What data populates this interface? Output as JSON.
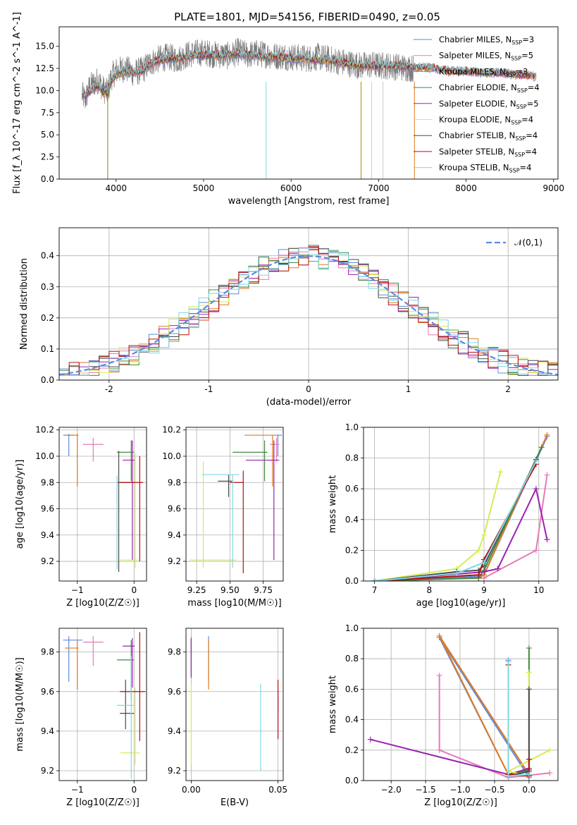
{
  "figure": {
    "title": "PLATE=1801, MJD=54156, FIBERID=0490, z=0.05"
  },
  "series_styles": [
    {
      "name": "Chabrier MILES",
      "nssp": "3",
      "color": "#5e8ae0"
    },
    {
      "name": "Salpeter MILES",
      "nssp": "5",
      "color": "#e77ab5"
    },
    {
      "name": "Kroupa MILES",
      "nssp": "3",
      "color": "#e07a22"
    },
    {
      "name": "Chabrier ELODIE",
      "nssp": "4",
      "color": "#3f8a3f"
    },
    {
      "name": "Salpeter ELODIE",
      "nssp": "5",
      "color": "#9b22b0"
    },
    {
      "name": "Kroupa ELODIE",
      "nssp": "4",
      "color": "#d4ec53"
    },
    {
      "name": "Chabrier STELIB",
      "nssp": "4",
      "color": "#4a4a4a"
    },
    {
      "name": "Salpeter STELIB",
      "nssp": "4",
      "color": "#b51010"
    },
    {
      "name": "Kroupa STELIB",
      "nssp": "4",
      "color": "#7fd8e6"
    }
  ],
  "chart_data": [
    {
      "id": "spectrum",
      "type": "line",
      "title": "PLATE=1801, MJD=54156, FIBERID=0490, z=0.05",
      "xlabel": "wavelength [Angstrom, rest frame]",
      "ylabel": "Flux [f_λ 10^-17 erg cm^-2 s^-1 A^-1]",
      "xlim": [
        3350,
        9050
      ],
      "ylim": [
        0,
        17.2
      ],
      "xticks": [
        4000,
        5000,
        6000,
        7000,
        8000,
        9000
      ],
      "yticks": [
        0.0,
        2.5,
        5.0,
        7.5,
        10.0,
        12.5,
        15.0
      ],
      "grid": false,
      "legend": "upper-right",
      "data_x": [
        3610,
        3650,
        3700,
        3750,
        3800,
        3850,
        3900,
        3950,
        4000,
        4100,
        4200,
        4300,
        4400,
        4500,
        4600,
        4700,
        4800,
        4900,
        5000,
        5100,
        5200,
        5300,
        5400,
        5500,
        5600,
        5700,
        5800,
        5900,
        6000,
        6100,
        6200,
        6300,
        6400,
        6500,
        6600,
        6700,
        6800,
        6900,
        7000,
        7100,
        7200,
        7300,
        7400
      ],
      "data_y": [
        9.5,
        9.0,
        10.5,
        10.8,
        11.2,
        10.2,
        9.8,
        11.6,
        12.2,
        12.5,
        12.0,
        12.3,
        13.2,
        13.6,
        13.8,
        13.5,
        14.0,
        14.2,
        14.3,
        14.1,
        14.0,
        13.9,
        14.4,
        14.0,
        14.2,
        14.1,
        13.9,
        13.9,
        13.8,
        13.7,
        13.6,
        13.8,
        13.6,
        13.4,
        13.2,
        13.0,
        12.8,
        12.9,
        12.8,
        12.8,
        12.7,
        12.6,
        12.5
      ],
      "model_x": [
        3610,
        3650,
        3700,
        3750,
        3800,
        3850,
        3900,
        3950,
        4000,
        4100,
        4200,
        4300,
        4400,
        4500,
        4600,
        4700,
        4800,
        4900,
        5000,
        5200,
        5400,
        5600,
        5800,
        6000,
        6200,
        6400,
        6600,
        6800,
        7000,
        7200,
        7400,
        7600,
        7800,
        8000,
        8200,
        8400,
        8600,
        8800
      ],
      "model_y": [
        9.6,
        9.4,
        10.0,
        10.3,
        10.6,
        9.8,
        9.6,
        11.2,
        11.8,
        12.2,
        12.1,
        12.2,
        13.0,
        13.4,
        13.6,
        13.6,
        13.8,
        14.0,
        14.0,
        14.0,
        14.1,
        13.9,
        13.8,
        13.6,
        13.6,
        13.4,
        13.1,
        12.8,
        12.8,
        12.8,
        12.6,
        12.6,
        12.2,
        12.2,
        12.0,
        12.0,
        11.8,
        11.6
      ]
    },
    {
      "id": "residuals",
      "type": "bar",
      "xlabel": "(data-model)/error",
      "ylabel": "Normed distribution",
      "xlim": [
        -2.5,
        2.5
      ],
      "ylim": [
        0,
        0.49
      ],
      "xticks": [
        -2,
        -1,
        0,
        1,
        2
      ],
      "yticks": [
        0.0,
        0.1,
        0.2,
        0.3,
        0.4
      ],
      "grid": true,
      "legend": "upper-right",
      "gauss_label": "𝒩(0,1)",
      "gauss_color": "#5e8ae0",
      "bins": [
        -2.45,
        -2.35,
        -2.25,
        -2.15,
        -2.05,
        -1.95,
        -1.85,
        -1.75,
        -1.65,
        -1.55,
        -1.45,
        -1.35,
        -1.25,
        -1.15,
        -1.05,
        -0.95,
        -0.85,
        -0.75,
        -0.65,
        -0.55,
        -0.45,
        -0.35,
        -0.25,
        -0.15,
        -0.05,
        0.05,
        0.15,
        0.25,
        0.35,
        0.45,
        0.55,
        0.65,
        0.75,
        0.85,
        0.95,
        1.05,
        1.15,
        1.25,
        1.35,
        1.45,
        1.55,
        1.65,
        1.75,
        1.85,
        1.95,
        2.05,
        2.15,
        2.25,
        2.35,
        2.45
      ]
    },
    {
      "id": "age-vs-z",
      "type": "scatter",
      "xlabel": "Z [log10(Z/Z☉)]",
      "ylabel": "age [log10(age/yr)]",
      "xlim": [
        -1.32,
        0.22
      ],
      "ylim": [
        9.05,
        10.22
      ],
      "xticks": [
        -1,
        0
      ],
      "xticklabels": [
        "−1",
        "0"
      ],
      "yticks": [
        9.2,
        9.4,
        9.6,
        9.8,
        10.0,
        10.2
      ],
      "grid": true,
      "points": [
        {
          "x": -1.15,
          "y": 10.16,
          "xerr": [
            0.1,
            0.1
          ],
          "yerr": [
            0.16,
            0.01
          ]
        },
        {
          "x": -0.72,
          "y": 10.09,
          "xerr": [
            0.18,
            0.18
          ],
          "yerr": [
            0.13,
            0.05
          ]
        },
        {
          "x": -1.0,
          "y": 10.16,
          "xerr": [
            0.22,
            0.02
          ],
          "yerr": [
            0.39,
            0.01
          ]
        },
        {
          "x": -0.05,
          "y": 10.03,
          "xerr": [
            0.25,
            0.05
          ],
          "yerr": [
            0.22,
            0.09
          ]
        },
        {
          "x": -0.03,
          "y": 9.97,
          "xerr": [
            0.17,
            0.04
          ],
          "yerr": [
            0.76,
            0.15
          ]
        },
        {
          "x": 0.02,
          "y": 9.21,
          "xerr": [
            0.26,
            0.04
          ],
          "yerr": [
            0.06,
            0.81
          ]
        },
        {
          "x": -0.27,
          "y": 9.8,
          "xerr": [
            0.02,
            0.27
          ],
          "yerr": [
            0.68,
            0.24
          ]
        },
        {
          "x": 0.1,
          "y": 9.8,
          "xerr": [
            0.35,
            0.06
          ],
          "yerr": [
            0.6,
            0.2
          ]
        },
        {
          "x": -0.3,
          "y": 9.85,
          "xerr": [
            0.0,
            0.05
          ],
          "yerr": [
            0.71,
            0.0
          ]
        }
      ]
    },
    {
      "id": "age-vs-mass",
      "type": "scatter",
      "xlabel": "mass [log10(M/M☉)]",
      "ylabel": "",
      "xlim": [
        9.17,
        9.9
      ],
      "ylim": [
        9.05,
        10.22
      ],
      "xticks": [
        9.25,
        9.5,
        9.75
      ],
      "xticklabels": [
        "9.25",
        "9.50",
        "9.75"
      ],
      "yticks": [
        9.2,
        9.4,
        9.6,
        9.8,
        10.0,
        10.2
      ],
      "grid": true,
      "points": [
        {
          "x": 9.86,
          "y": 10.16,
          "xerr": [
            0.02,
            0.03
          ],
          "yerr": [
            0.16,
            0.0
          ]
        },
        {
          "x": 9.85,
          "y": 10.09,
          "xerr": [
            0.05,
            0.02
          ],
          "yerr": [
            0.13,
            0.05
          ]
        },
        {
          "x": 9.82,
          "y": 10.16,
          "xerr": [
            0.21,
            0.02
          ],
          "yerr": [
            0.39,
            0.0
          ]
        },
        {
          "x": 9.76,
          "y": 10.03,
          "xerr": [
            0.24,
            0.02
          ],
          "yerr": [
            0.22,
            0.09
          ]
        },
        {
          "x": 9.83,
          "y": 9.97,
          "xerr": [
            0.21,
            0.04
          ],
          "yerr": [
            0.76,
            0.15
          ]
        },
        {
          "x": 9.3,
          "y": 9.21,
          "xerr": [
            0.1,
            0.25
          ],
          "yerr": [
            0.06,
            0.75
          ]
        },
        {
          "x": 9.49,
          "y": 9.81,
          "xerr": [
            0.08,
            0.03
          ],
          "yerr": [
            0.12,
            0.05
          ]
        },
        {
          "x": 9.6,
          "y": 9.8,
          "xerr": [
            0.1,
            0.0
          ],
          "yerr": [
            0.69,
            0.09
          ]
        },
        {
          "x": 9.52,
          "y": 9.86,
          "xerr": [
            0.23,
            0.05
          ],
          "yerr": [
            0.71,
            0.0
          ]
        }
      ]
    },
    {
      "id": "weight-vs-age",
      "type": "line",
      "xlabel": "age [log10(age/yr)]",
      "ylabel": "mass weight",
      "xlim": [
        6.8,
        10.35
      ],
      "ylim": [
        0,
        1.0
      ],
      "xticks": [
        7,
        8,
        9,
        10
      ],
      "yticks": [
        0.0,
        0.2,
        0.4,
        0.6,
        0.8,
        1.0
      ],
      "grid": true,
      "series": [
        {
          "x": [
            7.0,
            8.9,
            9.0,
            10.15
          ],
          "y": [
            0.0,
            0.03,
            0.04,
            0.94
          ]
        },
        {
          "x": [
            7.0,
            9.0,
            9.95,
            10.15
          ],
          "y": [
            0.0,
            0.02,
            0.2,
            0.69
          ]
        },
        {
          "x": [
            7.0,
            8.9,
            9.0,
            10.15
          ],
          "y": [
            0.0,
            0.02,
            0.04,
            0.95
          ]
        },
        {
          "x": [
            7.0,
            8.9,
            9.0,
            10.05
          ],
          "y": [
            0.0,
            0.02,
            0.07,
            0.87
          ]
        },
        {
          "x": [
            7.0,
            9.0,
            9.25,
            9.95,
            10.15
          ],
          "y": [
            0.0,
            0.06,
            0.08,
            0.6,
            0.27
          ]
        },
        {
          "x": [
            7.0,
            8.5,
            8.9,
            9.0,
            9.3
          ],
          "y": [
            0.0,
            0.08,
            0.2,
            0.3,
            0.71
          ]
        },
        {
          "x": [
            7.0,
            8.5,
            8.9,
            9.0,
            9.95
          ],
          "y": [
            0.0,
            0.06,
            0.07,
            0.1,
            0.79
          ]
        },
        {
          "x": [
            7.0,
            8.9,
            9.0,
            9.95
          ],
          "y": [
            0.0,
            0.04,
            0.14,
            0.76
          ]
        },
        {
          "x": [
            7.0,
            8.5,
            9.0,
            9.95
          ],
          "y": [
            0.0,
            0.05,
            0.12,
            0.78
          ]
        }
      ]
    },
    {
      "id": "mass-vs-z",
      "type": "scatter",
      "xlabel": "Z [log10(Z/Z☉)]",
      "ylabel": "mass [log10(M/M☉)]",
      "xlim": [
        -1.32,
        0.22
      ],
      "ylim": [
        9.15,
        9.92
      ],
      "xticks": [
        -1,
        0
      ],
      "xticklabels": [
        "−1",
        "0"
      ],
      "yticks": [
        9.2,
        9.4,
        9.6,
        9.8
      ],
      "grid": true,
      "points": [
        {
          "x": -1.15,
          "y": 9.86,
          "xerr": [
            0.1,
            0.24
          ],
          "yerr": [
            0.21,
            0.02
          ]
        },
        {
          "x": -0.72,
          "y": 9.85,
          "xerr": [
            0.18,
            0.18
          ],
          "yerr": [
            0.12,
            0.03
          ]
        },
        {
          "x": -1.0,
          "y": 9.82,
          "xerr": [
            0.22,
            0.02
          ],
          "yerr": [
            0.21,
            0.04
          ]
        },
        {
          "x": -0.05,
          "y": 9.76,
          "xerr": [
            0.25,
            0.05
          ],
          "yerr": [
            0.2,
            0.1
          ]
        },
        {
          "x": -0.03,
          "y": 9.83,
          "xerr": [
            0.17,
            0.04
          ],
          "yerr": [
            0.21,
            0.04
          ]
        },
        {
          "x": 0.02,
          "y": 9.29,
          "xerr": [
            0.26,
            0.08
          ],
          "yerr": [
            0.06,
            0.33
          ]
        },
        {
          "x": -0.15,
          "y": 9.49,
          "xerr": [
            0.1,
            0.15
          ],
          "yerr": [
            0.08,
            0.17
          ]
        },
        {
          "x": 0.1,
          "y": 9.6,
          "xerr": [
            0.35,
            0.1
          ],
          "yerr": [
            0.25,
            0.3
          ]
        },
        {
          "x": -0.05,
          "y": 9.53,
          "xerr": [
            0.25,
            0.05
          ],
          "yerr": [
            0.37,
            0.25
          ]
        }
      ]
    },
    {
      "id": "mass-vs-ebv",
      "type": "scatter",
      "xlabel": "E(B-V)",
      "ylabel": "",
      "xlim": [
        -0.003,
        0.053
      ],
      "ylim": [
        9.15,
        9.92
      ],
      "xticks": [
        0.0,
        0.05
      ],
      "xticklabels": [
        "0.00",
        "0.05"
      ],
      "yticks": [
        9.2,
        9.4,
        9.6,
        9.8
      ],
      "grid": true,
      "points": [
        {
          "x": 0.01,
          "y": 9.86,
          "xerr": [
            0,
            0
          ],
          "yerr": [
            0.21,
            0.02
          ]
        },
        {
          "x": 0.0,
          "y": 9.85,
          "xerr": [
            0,
            0
          ],
          "yerr": [
            0.1,
            0.03
          ]
        },
        {
          "x": 0.01,
          "y": 9.82,
          "xerr": [
            0,
            0
          ],
          "yerr": [
            0.21,
            0.04
          ]
        },
        {
          "x": 0.0,
          "y": 9.76,
          "xerr": [
            0,
            0
          ],
          "yerr": [
            0.08,
            0.1
          ]
        },
        {
          "x": 0.0,
          "y": 9.83,
          "xerr": [
            0,
            0
          ],
          "yerr": [
            0.16,
            0.04
          ]
        },
        {
          "x": 0.0,
          "y": 9.43,
          "xerr": [
            0,
            0
          ],
          "yerr": [
            0.2,
            0.2
          ]
        },
        {
          "x": 0.05,
          "y": 9.5,
          "xerr": [
            0,
            0
          ],
          "yerr": [
            0.0,
            0.1
          ]
        },
        {
          "x": 0.05,
          "y": 9.51,
          "xerr": [
            0,
            0
          ],
          "yerr": [
            0.15,
            0.15
          ]
        },
        {
          "x": 0.04,
          "y": 9.42,
          "xerr": [
            0,
            0
          ],
          "yerr": [
            0.22,
            0.22
          ]
        }
      ]
    },
    {
      "id": "weight-vs-z",
      "type": "line",
      "xlabel": "Z [log10(Z/Z☉)]",
      "ylabel": "mass weight",
      "xlim": [
        -2.4,
        0.42
      ],
      "ylim": [
        0,
        1.0
      ],
      "xticks": [
        -2.0,
        -1.5,
        -1.0,
        -0.5,
        0.0
      ],
      "xticklabels": [
        "−2.0",
        "−1.5",
        "−1.0",
        "−0.5",
        "0.0"
      ],
      "yticks": [
        0.0,
        0.2,
        0.4,
        0.6,
        0.8,
        1.0
      ],
      "grid": true,
      "series": [
        {
          "x": [
            -0.3,
            -0.3,
            -1.3,
            0.0
          ],
          "y": [
            0.79,
            0.04,
            0.94,
            0.02
          ]
        },
        {
          "x": [
            -1.3,
            -1.3,
            -0.3,
            0.3
          ],
          "y": [
            0.69,
            0.2,
            0.02,
            0.05
          ]
        },
        {
          "x": [
            -0.3,
            -1.3,
            0.0
          ],
          "y": [
            0.04,
            0.95,
            0.04
          ]
        },
        {
          "x": [
            -0.3,
            0.0,
            0.0
          ],
          "y": [
            0.04,
            0.07,
            0.87
          ]
        },
        {
          "x": [
            -2.3,
            -0.3,
            0.0
          ],
          "y": [
            0.27,
            0.04,
            0.08
          ]
        },
        {
          "x": [
            0.0,
            0.0,
            -0.3,
            0.3
          ],
          "y": [
            0.71,
            0.03,
            0.06,
            0.2
          ]
        },
        {
          "x": [
            -0.3,
            0.0,
            0.0
          ],
          "y": [
            0.03,
            0.06,
            0.6
          ]
        },
        {
          "x": [
            -0.3,
            -0.3,
            0.0,
            0.0
          ],
          "y": [
            0.76,
            0.04,
            0.03,
            0.14
          ]
        },
        {
          "x": [
            -0.3,
            -0.3,
            0.0
          ],
          "y": [
            0.78,
            0.03,
            0.04
          ]
        }
      ]
    }
  ]
}
